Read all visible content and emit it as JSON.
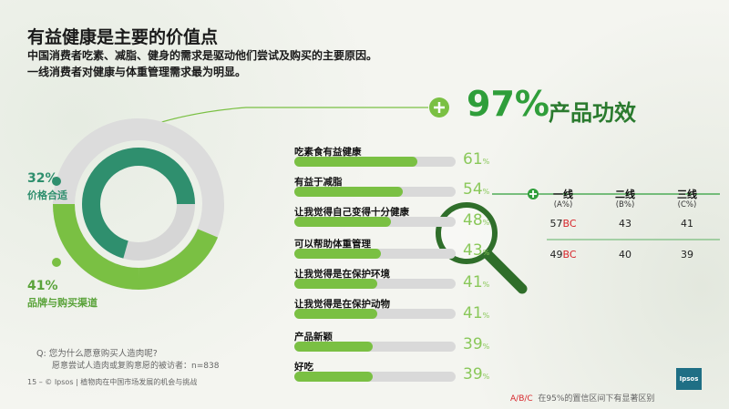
{
  "title": "有益健康是主要的价值点",
  "subtitle_lines": [
    "中国消费者吃素、减脂、健身的需求是驱动他们尝试及购买的主要原因。",
    "一线消费者对健康与体重管理需求最为明显。"
  ],
  "headline": {
    "value": "97%",
    "label": "产品功效",
    "icon": "plus-icon"
  },
  "donut_stats": [
    {
      "value": "32%",
      "label": "价格合适"
    },
    {
      "value": "41%",
      "label": "品牌与购买渠道"
    }
  ],
  "reasons": [
    {
      "label": "吃素食有益健康",
      "pct": "61",
      "unit": "%"
    },
    {
      "label": "有益于减脂",
      "pct": "54",
      "unit": "%"
    },
    {
      "label": "让我觉得自己变得十分健康",
      "pct": "48",
      "unit": "%"
    },
    {
      "label": "可以帮助体重管理",
      "pct": "43",
      "unit": "%"
    },
    {
      "label": "让我觉得是在保护环境",
      "pct": "41",
      "unit": "%"
    },
    {
      "label": "让我觉得是在保护动物",
      "pct": "41",
      "unit": "%"
    },
    {
      "label": "产品新颖",
      "pct": "39",
      "unit": "%"
    },
    {
      "label": "好吃",
      "pct": "39",
      "unit": "%"
    }
  ],
  "tier_table": {
    "headers": [
      {
        "name": "一线",
        "code": "(A%)"
      },
      {
        "name": "二线",
        "code": "(B%)"
      },
      {
        "name": "三线",
        "code": "(C%)"
      }
    ],
    "rows": [
      [
        {
          "v": "57",
          "sig": "BC"
        },
        {
          "v": "43",
          "sig": ""
        },
        {
          "v": "41",
          "sig": ""
        }
      ],
      [
        {
          "v": "49",
          "sig": "BC"
        },
        {
          "v": "40",
          "sig": ""
        },
        {
          "v": "39",
          "sig": ""
        }
      ]
    ]
  },
  "question": {
    "q": "Q:  您为什么愿意购买人造肉呢?",
    "base": "愿意尝试人造肉或复购意愿的被访者：n=838"
  },
  "footer": {
    "page": "15 –",
    "brand": "© Ipsos",
    "report": "植物肉在中国市场发展的机会与挑战",
    "sig_note_codes": "A/B/C",
    "sig_note_text": "在95%的置信区间下有显著区别",
    "logo_text": "Ipsos"
  },
  "colors": {
    "green_dark": "#2f9e3a",
    "green_light": "#7ac043",
    "grey_bar": "#d9d9d9",
    "sig_red": "#d7262b"
  }
}
